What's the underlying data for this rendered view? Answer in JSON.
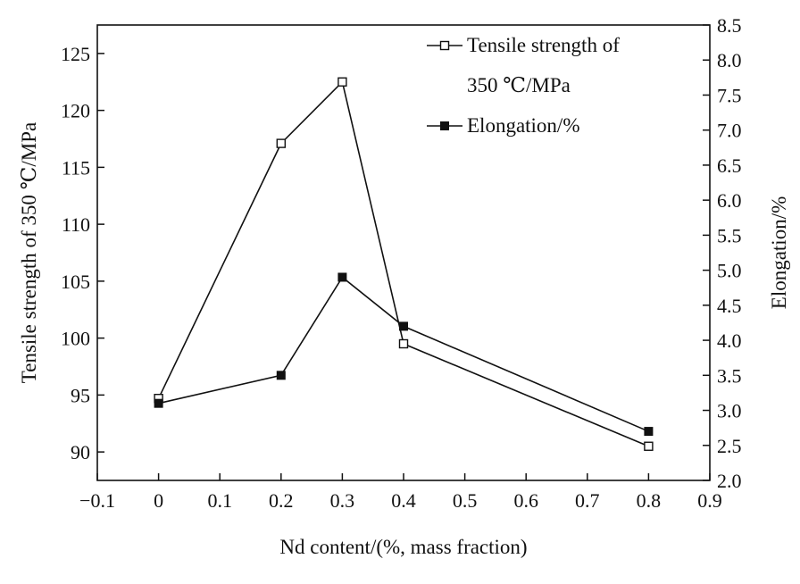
{
  "chart_data": {
    "type": "line",
    "x": [
      0,
      0.2,
      0.3,
      0.4,
      0.8
    ],
    "series": [
      {
        "name": "Tensile strength of 350 ℃/MPa",
        "axis": "left",
        "marker": "open-square",
        "values": [
          94.7,
          117.1,
          122.5,
          99.5,
          90.5
        ]
      },
      {
        "name": "Elongation/%",
        "axis": "right",
        "marker": "filled-square",
        "values": [
          3.1,
          3.5,
          4.9,
          4.2,
          2.7
        ]
      }
    ],
    "xlabel": "Nd content/(%, mass fraction)",
    "ylabel_left": "Tensile strength of 350 ℃/MPa",
    "ylabel_right": "Elongation/%",
    "xlim": [
      -0.1,
      0.9
    ],
    "ylim_left": [
      87.5,
      127.5
    ],
    "ylim_right": [
      2.0,
      8.5
    ],
    "x_ticks": [
      "−0.1",
      "0",
      "0.1",
      "0.2",
      "0.3",
      "0.4",
      "0.5",
      "0.6",
      "0.7",
      "0.8",
      "0.9"
    ],
    "y_left_ticks": [
      "90",
      "95",
      "100",
      "105",
      "110",
      "115",
      "120",
      "125"
    ],
    "y_right_ticks": [
      "2.0",
      "2.5",
      "3.0",
      "3.5",
      "4.0",
      "4.5",
      "5.0",
      "5.5",
      "6.0",
      "6.5",
      "7.0",
      "7.5",
      "8.0",
      "8.5"
    ],
    "legend": {
      "placement": "top-right",
      "entries": [
        {
          "lines": [
            "Tensile strength of",
            "350 ℃/MPa"
          ],
          "marker": "open-square"
        },
        {
          "lines": [
            "Elongation/%"
          ],
          "marker": "filled-square"
        }
      ]
    },
    "grid": false
  }
}
